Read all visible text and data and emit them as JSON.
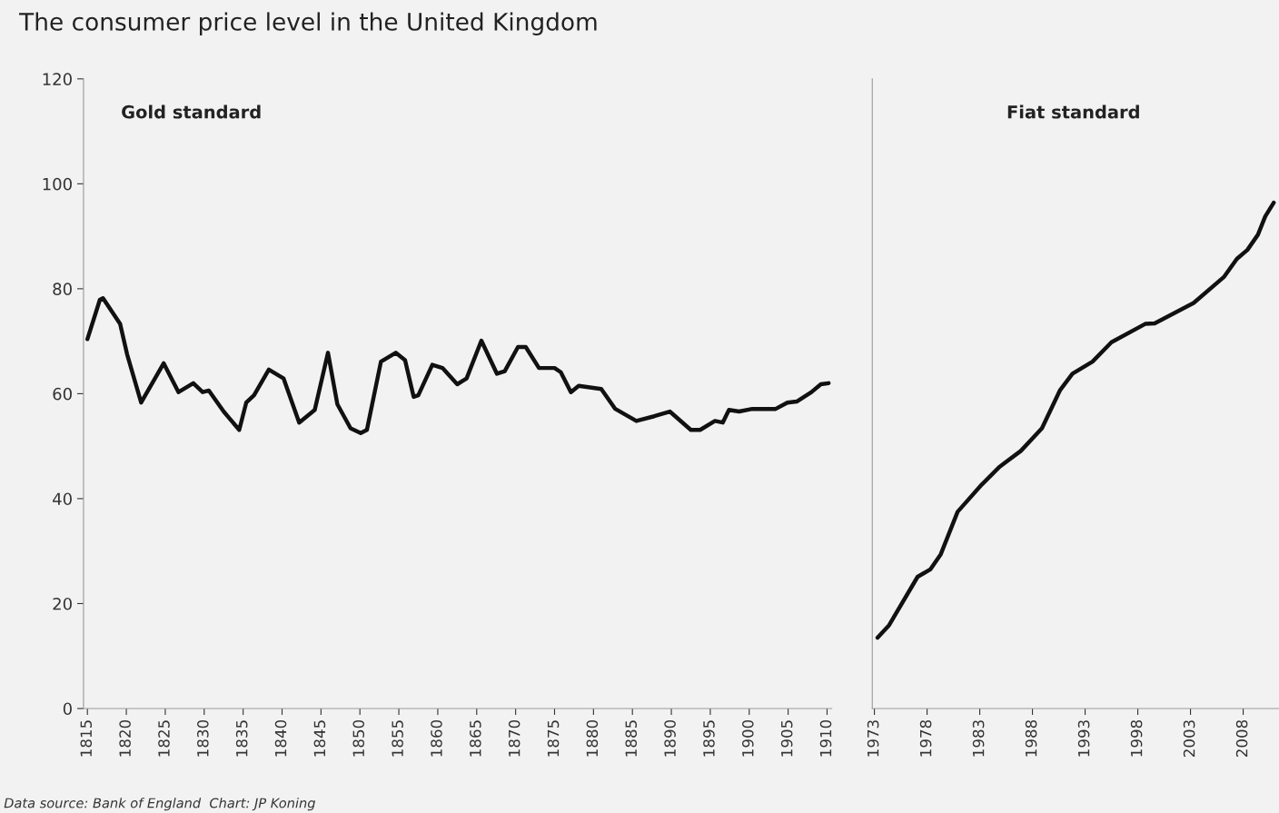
{
  "chart_data": [
    {
      "type": "line",
      "title": "The consumer price level in the United Kingdom",
      "annotations": [
        "Gold standard",
        "Data source: Bank of England  Chart: JP Koning"
      ],
      "x": [
        1815,
        1816.6,
        1817,
        1819.2,
        1820.1,
        1821.9,
        1824.8,
        1826.7,
        1828.6,
        1829.8,
        1830.6,
        1832.5,
        1834.5,
        1835.4,
        1836.4,
        1838.3,
        1840.2,
        1842.2,
        1844.2,
        1845.9,
        1847.1,
        1848.8,
        1850.1,
        1850.9,
        1852.7,
        1854.6,
        1855.8,
        1856.9,
        1857.5,
        1859.3,
        1860.6,
        1862.5,
        1863.7,
        1865.6,
        1867.6,
        1868.6,
        1870.3,
        1871.3,
        1873.0,
        1875.0,
        1875.8,
        1877.1,
        1878.1,
        1881.0,
        1882.8,
        1885.5,
        1887.8,
        1889.8,
        1892.5,
        1893.7,
        1895.6,
        1896.6,
        1897.4,
        1898.7,
        1900.4,
        1903.4,
        1904.9,
        1906.1,
        1908.0,
        1909.2,
        1910.2
      ],
      "series": [
        {
          "color": "#111111",
          "values": [
            70.4,
            77.9,
            78.2,
            73.3,
            67.5,
            58.3,
            65.8,
            60.3,
            62.0,
            60.3,
            60.6,
            56.6,
            53.1,
            58.3,
            59.7,
            64.6,
            62.9,
            54.5,
            56.9,
            67.8,
            58.0,
            53.4,
            52.5,
            53.1,
            66.1,
            67.8,
            66.4,
            59.4,
            59.7,
            65.5,
            64.9,
            61.8,
            62.9,
            70.1,
            63.8,
            64.3,
            68.9,
            68.9,
            64.9,
            64.9,
            64.1,
            60.3,
            61.5,
            60.9,
            57.1,
            54.8,
            55.7,
            56.6,
            53.1,
            53.1,
            54.8,
            54.5,
            56.9,
            56.6,
            57.1,
            57.1,
            58.3,
            58.5,
            60.3,
            61.8,
            62.0
          ]
        }
      ],
      "xlim": [
        1814.5,
        1910.6
      ],
      "xticks": [
        1815,
        1820,
        1825,
        1830,
        1835,
        1840,
        1845,
        1850,
        1855,
        1860,
        1865,
        1870,
        1875,
        1880,
        1885,
        1890,
        1895,
        1900,
        1905,
        1910
      ],
      "ylim": [
        0,
        120
      ],
      "yticks": [
        0,
        20,
        40,
        60,
        80,
        100,
        120
      ],
      "grid": false,
      "legend": false,
      "marker": "none",
      "line_style": "solid"
    },
    {
      "type": "line",
      "annotations": [
        "Fiat standard"
      ],
      "x": [
        1973.3,
        1974.4,
        1977.1,
        1978.3,
        1979.3,
        1980.9,
        1983.2,
        1984.9,
        1986.9,
        1988.9,
        1990.6,
        1991.8,
        1993.7,
        1995.5,
        1998.7,
        1999.6,
        2003.3,
        2006.2,
        2007.4,
        2008.4,
        2009.4,
        2010.1,
        2010.9
      ],
      "series": [
        {
          "color": "#111111",
          "values": [
            13.5,
            15.9,
            25.1,
            26.5,
            29.4,
            37.5,
            42.7,
            46.1,
            49.1,
            53.4,
            60.6,
            63.8,
            66.1,
            69.8,
            73.3,
            73.4,
            77.3,
            82.3,
            85.7,
            87.4,
            90.3,
            93.8,
            96.4
          ]
        }
      ],
      "xlim": [
        1972.8,
        2011.4
      ],
      "xticks": [
        1973,
        1978,
        1983,
        1988,
        1993,
        1998,
        2003,
        2008
      ],
      "ylim": [
        0,
        120
      ],
      "tick_labels": "x",
      "grid": false,
      "legend": false,
      "marker": "none",
      "line_style": "solid"
    }
  ]
}
